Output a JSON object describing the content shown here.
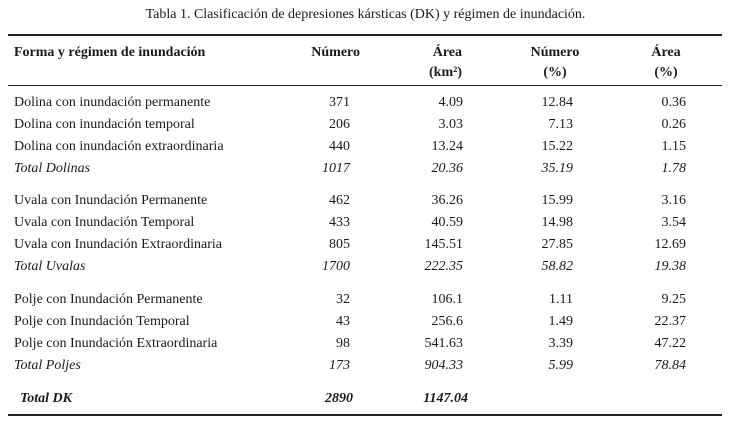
{
  "caption": "Tabla 1. Clasificación de depresiones kársticas (DK) y régimen de inundación.",
  "headers": {
    "forma": "Forma y régimen de inundación",
    "numero": "Número",
    "area_line1": "Área",
    "area_line2": "(km²)",
    "numero_pct_line1": "Número",
    "numero_pct_line2": "(%)",
    "area_pct_line1": "Área",
    "area_pct_line2": "(%)"
  },
  "groups": [
    {
      "rows": [
        {
          "label": "Dolina con inundación permanente",
          "numero": "371",
          "area": "4.09",
          "numero_pct": "12.84",
          "area_pct": "0.36"
        },
        {
          "label": "Dolina con inundación temporal",
          "numero": "206",
          "area": "3.03",
          "numero_pct": "7.13",
          "area_pct": "0.26"
        },
        {
          "label": "Dolina con inundación extraordinaria",
          "numero": "440",
          "area": "13.24",
          "numero_pct": "15.22",
          "area_pct": "1.15"
        }
      ],
      "total": {
        "label": "Total Dolinas",
        "numero": "1017",
        "area": "20.36",
        "numero_pct": "35.19",
        "area_pct": "1.78"
      }
    },
    {
      "rows": [
        {
          "label": "Uvala con Inundación Permanente",
          "numero": "462",
          "area": "36.26",
          "numero_pct": "15.99",
          "area_pct": "3.16"
        },
        {
          "label": "Uvala con Inundación Temporal",
          "numero": "433",
          "area": "40.59",
          "numero_pct": "14.98",
          "area_pct": "3.54"
        },
        {
          "label": "Uvala con Inundación Extraordinaria",
          "numero": "805",
          "area": "145.51",
          "numero_pct": "27.85",
          "area_pct": "12.69"
        }
      ],
      "total": {
        "label": "Total Uvalas",
        "numero": "1700",
        "area": "222.35",
        "numero_pct": "58.82",
        "area_pct": "19.38"
      }
    },
    {
      "rows": [
        {
          "label": "Polje con Inundación Permanente",
          "numero": "32",
          "area": "106.1",
          "numero_pct": "1.11",
          "area_pct": "9.25"
        },
        {
          "label": "Polje con Inundación Temporal",
          "numero": "43",
          "area": "256.6",
          "numero_pct": "1.49",
          "area_pct": "22.37"
        },
        {
          "label": "Polje con Inundación Extraordinaria",
          "numero": "98",
          "area": "541.63",
          "numero_pct": "3.39",
          "area_pct": "47.22"
        }
      ],
      "total": {
        "label": "Total Poljes",
        "numero": "173",
        "area": "904.33",
        "numero_pct": "5.99",
        "area_pct": "78.84"
      }
    }
  ],
  "grand_total": {
    "label": "Total DK",
    "numero": "2890",
    "area": "1147.04"
  }
}
